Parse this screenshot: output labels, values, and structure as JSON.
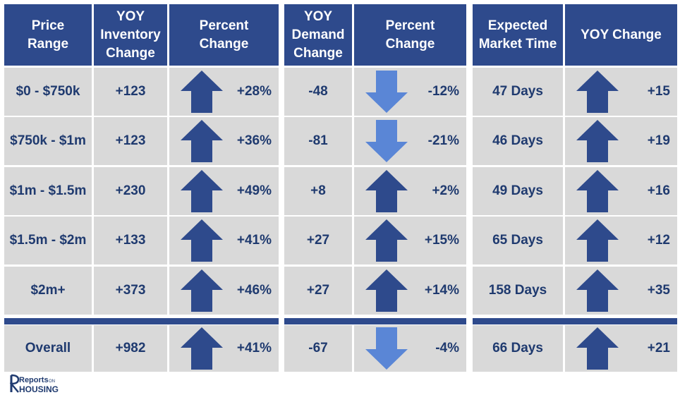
{
  "headers": {
    "price_range": "Price\nRange",
    "yoy_inventory_change": "YOY\nInventory\nChange",
    "inventory_percent_change": "Percent\nChange",
    "yoy_demand_change": "YOY\nDemand\nChange",
    "demand_percent_change": "Percent\nChange",
    "expected_market_time": "Expected\nMarket Time",
    "market_time_yoy_change": "YOY Change"
  },
  "rows": [
    {
      "price_range": "$0 - $750k",
      "inventory_change": "+123",
      "inventory_pct": "+28%",
      "inventory_dir": "up",
      "demand_change": "-48",
      "demand_pct": "-12%",
      "demand_dir": "down",
      "market_time": "47 Days",
      "market_time_change": "+15",
      "market_time_dir": "up"
    },
    {
      "price_range": "$750k - $1m",
      "inventory_change": "+123",
      "inventory_pct": "+36%",
      "inventory_dir": "up",
      "demand_change": "-81",
      "demand_pct": "-21%",
      "demand_dir": "down",
      "market_time": "46 Days",
      "market_time_change": "+19",
      "market_time_dir": "up"
    },
    {
      "price_range": "$1m - $1.5m",
      "inventory_change": "+230",
      "inventory_pct": "+49%",
      "inventory_dir": "up",
      "demand_change": "+8",
      "demand_pct": "+2%",
      "demand_dir": "up",
      "market_time": "49 Days",
      "market_time_change": "+16",
      "market_time_dir": "up"
    },
    {
      "price_range": "$1.5m - $2m",
      "inventory_change": "+133",
      "inventory_pct": "+41%",
      "inventory_dir": "up",
      "demand_change": "+27",
      "demand_pct": "+15%",
      "demand_dir": "up",
      "market_time": "65 Days",
      "market_time_change": "+12",
      "market_time_dir": "up"
    },
    {
      "price_range": "$2m+",
      "inventory_change": "+373",
      "inventory_pct": "+46%",
      "inventory_dir": "up",
      "demand_change": "+27",
      "demand_pct": "+14%",
      "demand_dir": "up",
      "market_time": "158 Days",
      "market_time_change": "+35",
      "market_time_dir": "up"
    }
  ],
  "overall": {
    "price_range": "Overall",
    "inventory_change": "+982",
    "inventory_pct": "+41%",
    "inventory_dir": "up",
    "demand_change": "-67",
    "demand_pct": "-4%",
    "demand_dir": "down",
    "market_time": "66 Days",
    "market_time_change": "+21",
    "market_time_dir": "up"
  },
  "colors": {
    "header": "#2e4a8c",
    "cell": "#d9d9d9",
    "text": "#1f3a6f",
    "arrow_up": "#2e4a8c",
    "arrow_down": "#5a86d6"
  },
  "logo": {
    "text_top": "Reports",
    "text_small": "ON",
    "text_bottom": "HOUSING"
  }
}
